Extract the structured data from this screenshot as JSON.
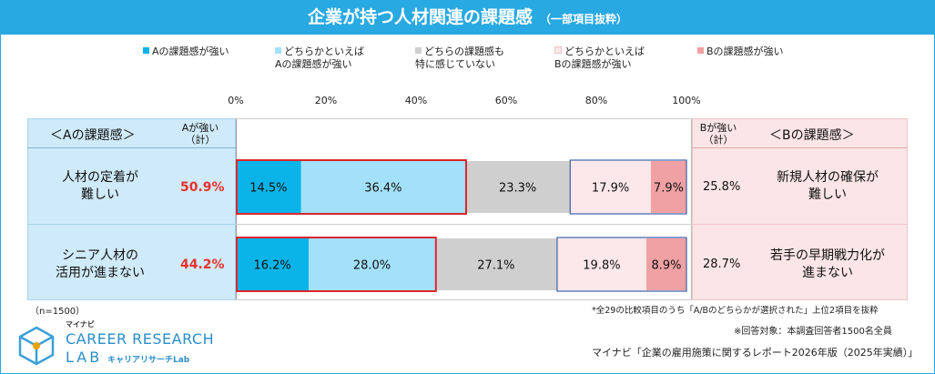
{
  "title": {
    "main": "企業が持つ人材関連の課題感",
    "sub": "（一部項目抜粋）"
  },
  "legend": [
    {
      "label": "Aの課題感が強い",
      "color": "#0ab4e8"
    },
    {
      "label": "どちらかといえば\nAの課題感が強い",
      "color": "#a3e1fa"
    },
    {
      "label": "どちらの課題感も\n特に感じていない",
      "color": "#cfcfcf"
    },
    {
      "label": "どちらかといえば\nBの課題感が強い",
      "color": "#fce8ea"
    },
    {
      "label": "Bの課題感が強い",
      "color": "#f0a1a3"
    }
  ],
  "headers": {
    "a_label": "＜Aの課題感＞",
    "a_total": "Aが強い\n（計）",
    "b_total": "Bが強い\n（計）",
    "b_label": "＜Bの課題感＞"
  },
  "chart_data": {
    "type": "bar",
    "orientation": "horizontal-stacked-100",
    "xlim": [
      0,
      100
    ],
    "ticks": [
      "0%",
      "20%",
      "40%",
      "60%",
      "80%",
      "100%"
    ],
    "series_names": [
      "Aの課題感が強い",
      "どちらかといえばAの課題感が強い",
      "どちらの課題感も特に感じていない",
      "どちらかといえばBの課題感が強い",
      "Bの課題感が強い"
    ],
    "rows": [
      {
        "a_item": "人材の定着が\n難しい",
        "a_total": "50.9%",
        "values": [
          14.5,
          36.4,
          23.3,
          17.9,
          7.9
        ],
        "labels": [
          "14.5%",
          "36.4%",
          "23.3%",
          "17.9%",
          "7.9%"
        ],
        "b_total": "25.8%",
        "b_item": "新規人材の確保が\n難しい"
      },
      {
        "a_item": "シニア人材の\n活用が進まない",
        "a_total": "44.2%",
        "values": [
          16.2,
          28.0,
          27.1,
          19.8,
          8.9
        ],
        "labels": [
          "16.2%",
          "28.0%",
          "27.1%",
          "19.8%",
          "8.9%"
        ],
        "b_total": "28.7%",
        "b_item": "若手の早期戦力化が\n進まない"
      }
    ]
  },
  "notes": {
    "n": "（n=1500）",
    "compare": "*全29の比較項目のうち「A/Bのどちらかが選択された」上位2項目を抜粋",
    "target": "※回答対象：本調査回答者1500名全員",
    "source": "マイナビ「企業の雇用施策に関するレポート2026年版（2025年実績）」"
  },
  "logo": {
    "small": "マイナビ",
    "line1": "CAREER RESEARCH",
    "line2": "LAB",
    "jp": "キャリアリサーチLab"
  }
}
